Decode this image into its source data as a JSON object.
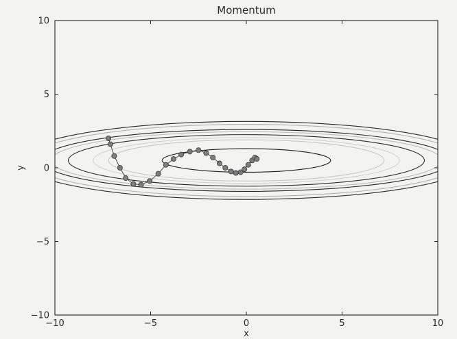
{
  "chart_data": {
    "type": "line",
    "title": "Momentum",
    "xlabel": "x",
    "ylabel": "y",
    "xlim": [
      -10,
      10
    ],
    "ylim": [
      -10,
      10
    ],
    "x_ticks": [
      "−10",
      "−5",
      "0",
      "5",
      "10"
    ],
    "y_ticks": [
      "10",
      "5",
      "0",
      "−5",
      "−10"
    ],
    "grid": false,
    "contour_series": {
      "center": [
        0,
        0.5
      ],
      "levels": [
        {
          "rx": 4.4,
          "ry": 0.8,
          "color": "#1e1e1e"
        },
        {
          "rx": 7.2,
          "ry": 1.4,
          "color": "#c8c8c8"
        },
        {
          "rx": 8.0,
          "ry": 1.55,
          "color": "#d2d2d2"
        },
        {
          "rx": 9.3,
          "ry": 1.75,
          "color": "#2a2a2a"
        },
        {
          "rx": 10.2,
          "ry": 1.95,
          "color": "#bcbcbc"
        },
        {
          "rx": 10.7,
          "ry": 2.1,
          "color": "#262626"
        },
        {
          "rx": 11.4,
          "ry": 2.45,
          "color": "#b0b0b0"
        },
        {
          "rx": 11.9,
          "ry": 2.65,
          "color": "#2a2a2a"
        }
      ]
    },
    "series": [
      {
        "color": "#7d7d7d",
        "x": [
          -7.2,
          -7.1,
          -6.9,
          -6.6,
          -6.3,
          -5.9,
          -5.5,
          -5.05,
          -4.6,
          -4.2,
          -3.8,
          -3.4,
          -2.95,
          -2.5,
          -2.1,
          -1.75,
          -1.4,
          -1.1,
          -0.8,
          -0.55,
          -0.3,
          -0.1,
          0.1,
          0.3,
          0.45,
          0.55
        ],
        "y": [
          2.0,
          1.6,
          0.8,
          0.0,
          -0.7,
          -1.1,
          -1.15,
          -0.9,
          -0.4,
          0.2,
          0.6,
          0.9,
          1.1,
          1.2,
          1.0,
          0.7,
          0.3,
          0.0,
          -0.25,
          -0.35,
          -0.3,
          -0.1,
          0.2,
          0.5,
          0.7,
          0.6
        ]
      }
    ]
  }
}
